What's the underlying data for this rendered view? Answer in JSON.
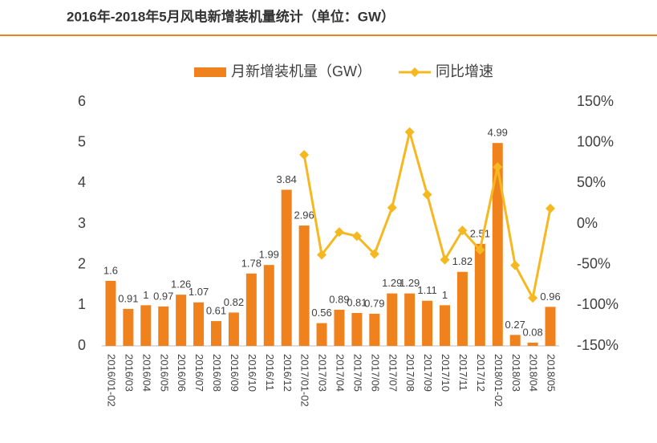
{
  "chart_data": {
    "type": "bar-line",
    "title": "2016年-2018年5月风电新增装机量统计（单位：GW）",
    "categories": [
      "2016/01-02",
      "2016/03",
      "2016/04",
      "2016/05",
      "2016/06",
      "2016/07",
      "2016/08",
      "2016/09",
      "2016/10",
      "2016/11",
      "2016/12",
      "2017/01-02",
      "2017/03",
      "2017/04",
      "2017/05",
      "2017/06",
      "2017/07",
      "2017/08",
      "2017/09",
      "2017/10",
      "2017/11",
      "2017/12",
      "2018/01-02",
      "2018/03",
      "2018/04",
      "2018/05"
    ],
    "series": [
      {
        "name": "月新增装机量（GW）",
        "type": "bar",
        "color": "#f0821e",
        "values": [
          1.6,
          0.91,
          1,
          0.97,
          1.26,
          1.07,
          0.61,
          0.82,
          1.78,
          1.99,
          3.84,
          2.96,
          0.56,
          0.89,
          0.81,
          0.79,
          1.29,
          1.29,
          1.11,
          1,
          1.82,
          2.51,
          4.99,
          0.27,
          0.08,
          0.96
        ]
      },
      {
        "name": "同比增速",
        "type": "line",
        "axis": "y2",
        "color": "#f5b820",
        "values": [
          null,
          null,
          null,
          null,
          null,
          null,
          null,
          null,
          null,
          null,
          null,
          85,
          -38,
          -10,
          -15,
          -37,
          20,
          113,
          36,
          -44,
          -8,
          -32,
          70,
          -51,
          -91,
          19
        ]
      }
    ],
    "ylim": [
      0,
      6
    ],
    "yticks": [
      0,
      1,
      2,
      3,
      4,
      5,
      6
    ],
    "y2lim": [
      -150,
      150
    ],
    "y2ticks": [
      {
        "value": 150,
        "label": "150%"
      },
      {
        "value": 100,
        "label": "100%"
      },
      {
        "value": 50,
        "label": "50%"
      },
      {
        "value": 0,
        "label": "0%"
      },
      {
        "value": -50,
        "label": "-50%"
      },
      {
        "value": -100,
        "label": "-100%"
      },
      {
        "value": -150,
        "label": "-150%"
      }
    ]
  }
}
